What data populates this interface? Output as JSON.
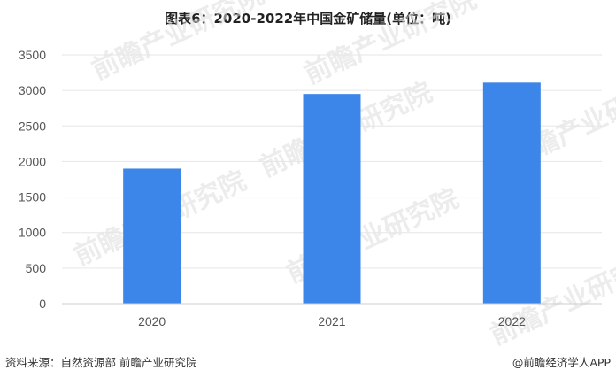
{
  "title": "图表6：2020-2022年中国金矿储量(单位：吨)",
  "source": "资料来源：自然资源部 前瞻产业研究院",
  "brand": "@前瞻经济学人APP",
  "watermark_text": "前瞻产业研究院",
  "colors": {
    "bar": "#3b86e8",
    "grid": "#e6e6e6",
    "axis": "#cccccc"
  },
  "chart_data": {
    "type": "bar",
    "title": "图表6：2020-2022年中国金矿储量(单位：吨)",
    "xlabel": "",
    "ylabel": "",
    "categories": [
      "2020",
      "2021",
      "2022"
    ],
    "values": [
      1900,
      2950,
      3110
    ],
    "ylim": [
      0,
      3500
    ],
    "yticks": [
      0,
      500,
      1000,
      1500,
      2000,
      2500,
      3000,
      3500
    ],
    "grid": true,
    "legend": "none"
  }
}
